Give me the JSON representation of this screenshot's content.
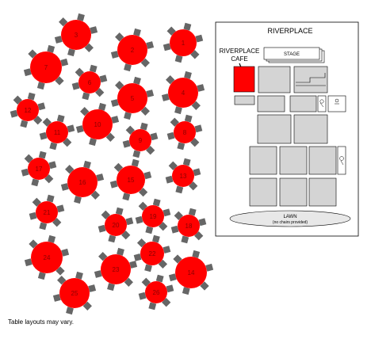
{
  "venue": {
    "title": "RIVERPLACE",
    "cafe_label_line1": "RIVERPLACE",
    "cafe_label_line2": "CAFE",
    "stage_label": "STAGE",
    "lawn_label": "LAWN",
    "lawn_note": "(no chairs provided)"
  },
  "note": "Table layouts may vary.",
  "colors": {
    "table_fill": "#ff0000",
    "chair_fill": "#666666",
    "block_fill": "#d4d4d4",
    "cafe_fill": "#ff0000"
  },
  "icons": [
    "wheelchair-accessible-icon",
    "restroom-icon"
  ],
  "tables": [
    {
      "label": "1"
    },
    {
      "label": "2"
    },
    {
      "label": "3"
    },
    {
      "label": "4"
    },
    {
      "label": "5"
    },
    {
      "label": "6"
    },
    {
      "label": "7"
    },
    {
      "label": "8"
    },
    {
      "label": "9"
    },
    {
      "label": "10"
    },
    {
      "label": "11"
    },
    {
      "label": "12"
    },
    {
      "label": "13"
    },
    {
      "label": "14"
    },
    {
      "label": "15"
    },
    {
      "label": "16"
    },
    {
      "label": "17"
    },
    {
      "label": "18"
    },
    {
      "label": "19"
    },
    {
      "label": "20"
    },
    {
      "label": "21"
    },
    {
      "label": "22"
    },
    {
      "label": "23"
    },
    {
      "label": "24"
    },
    {
      "label": "25"
    },
    {
      "label": "26"
    }
  ]
}
